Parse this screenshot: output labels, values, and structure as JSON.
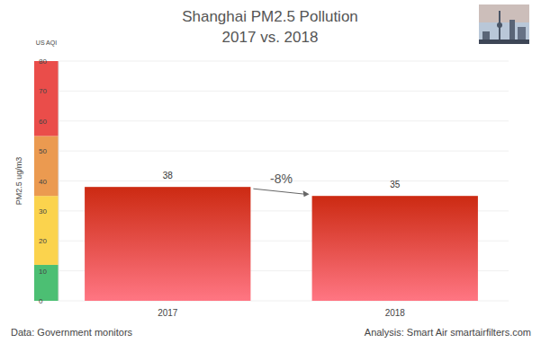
{
  "chart_data": {
    "type": "bar",
    "title": "Shanghai PM2.5 Pollution",
    "subtitle": "2017 vs. 2018",
    "ylabel": "PM2.5 ug/m3",
    "band_label": "US AQI",
    "categories": [
      "2017",
      "2018"
    ],
    "values": [
      38,
      35
    ],
    "color": "#cc2a12",
    "ylim": [
      0,
      80
    ],
    "yticks": [
      0,
      10,
      20,
      30,
      40,
      50,
      60,
      70,
      80
    ],
    "grid": true,
    "data_labels": true,
    "annotation": "-8%",
    "bands": [
      {
        "from": 0,
        "to": 12,
        "color": "#4cbf73"
      },
      {
        "from": 12,
        "to": 35,
        "color": "#fbd34d"
      },
      {
        "from": 35,
        "to": 55,
        "color": "#eb9a50"
      },
      {
        "from": 55,
        "to": 80,
        "color": "#ea4d4a"
      }
    ],
    "source": "Data: Government monitors",
    "credit": "Analysis: Smart Air smartairfilters.com"
  }
}
